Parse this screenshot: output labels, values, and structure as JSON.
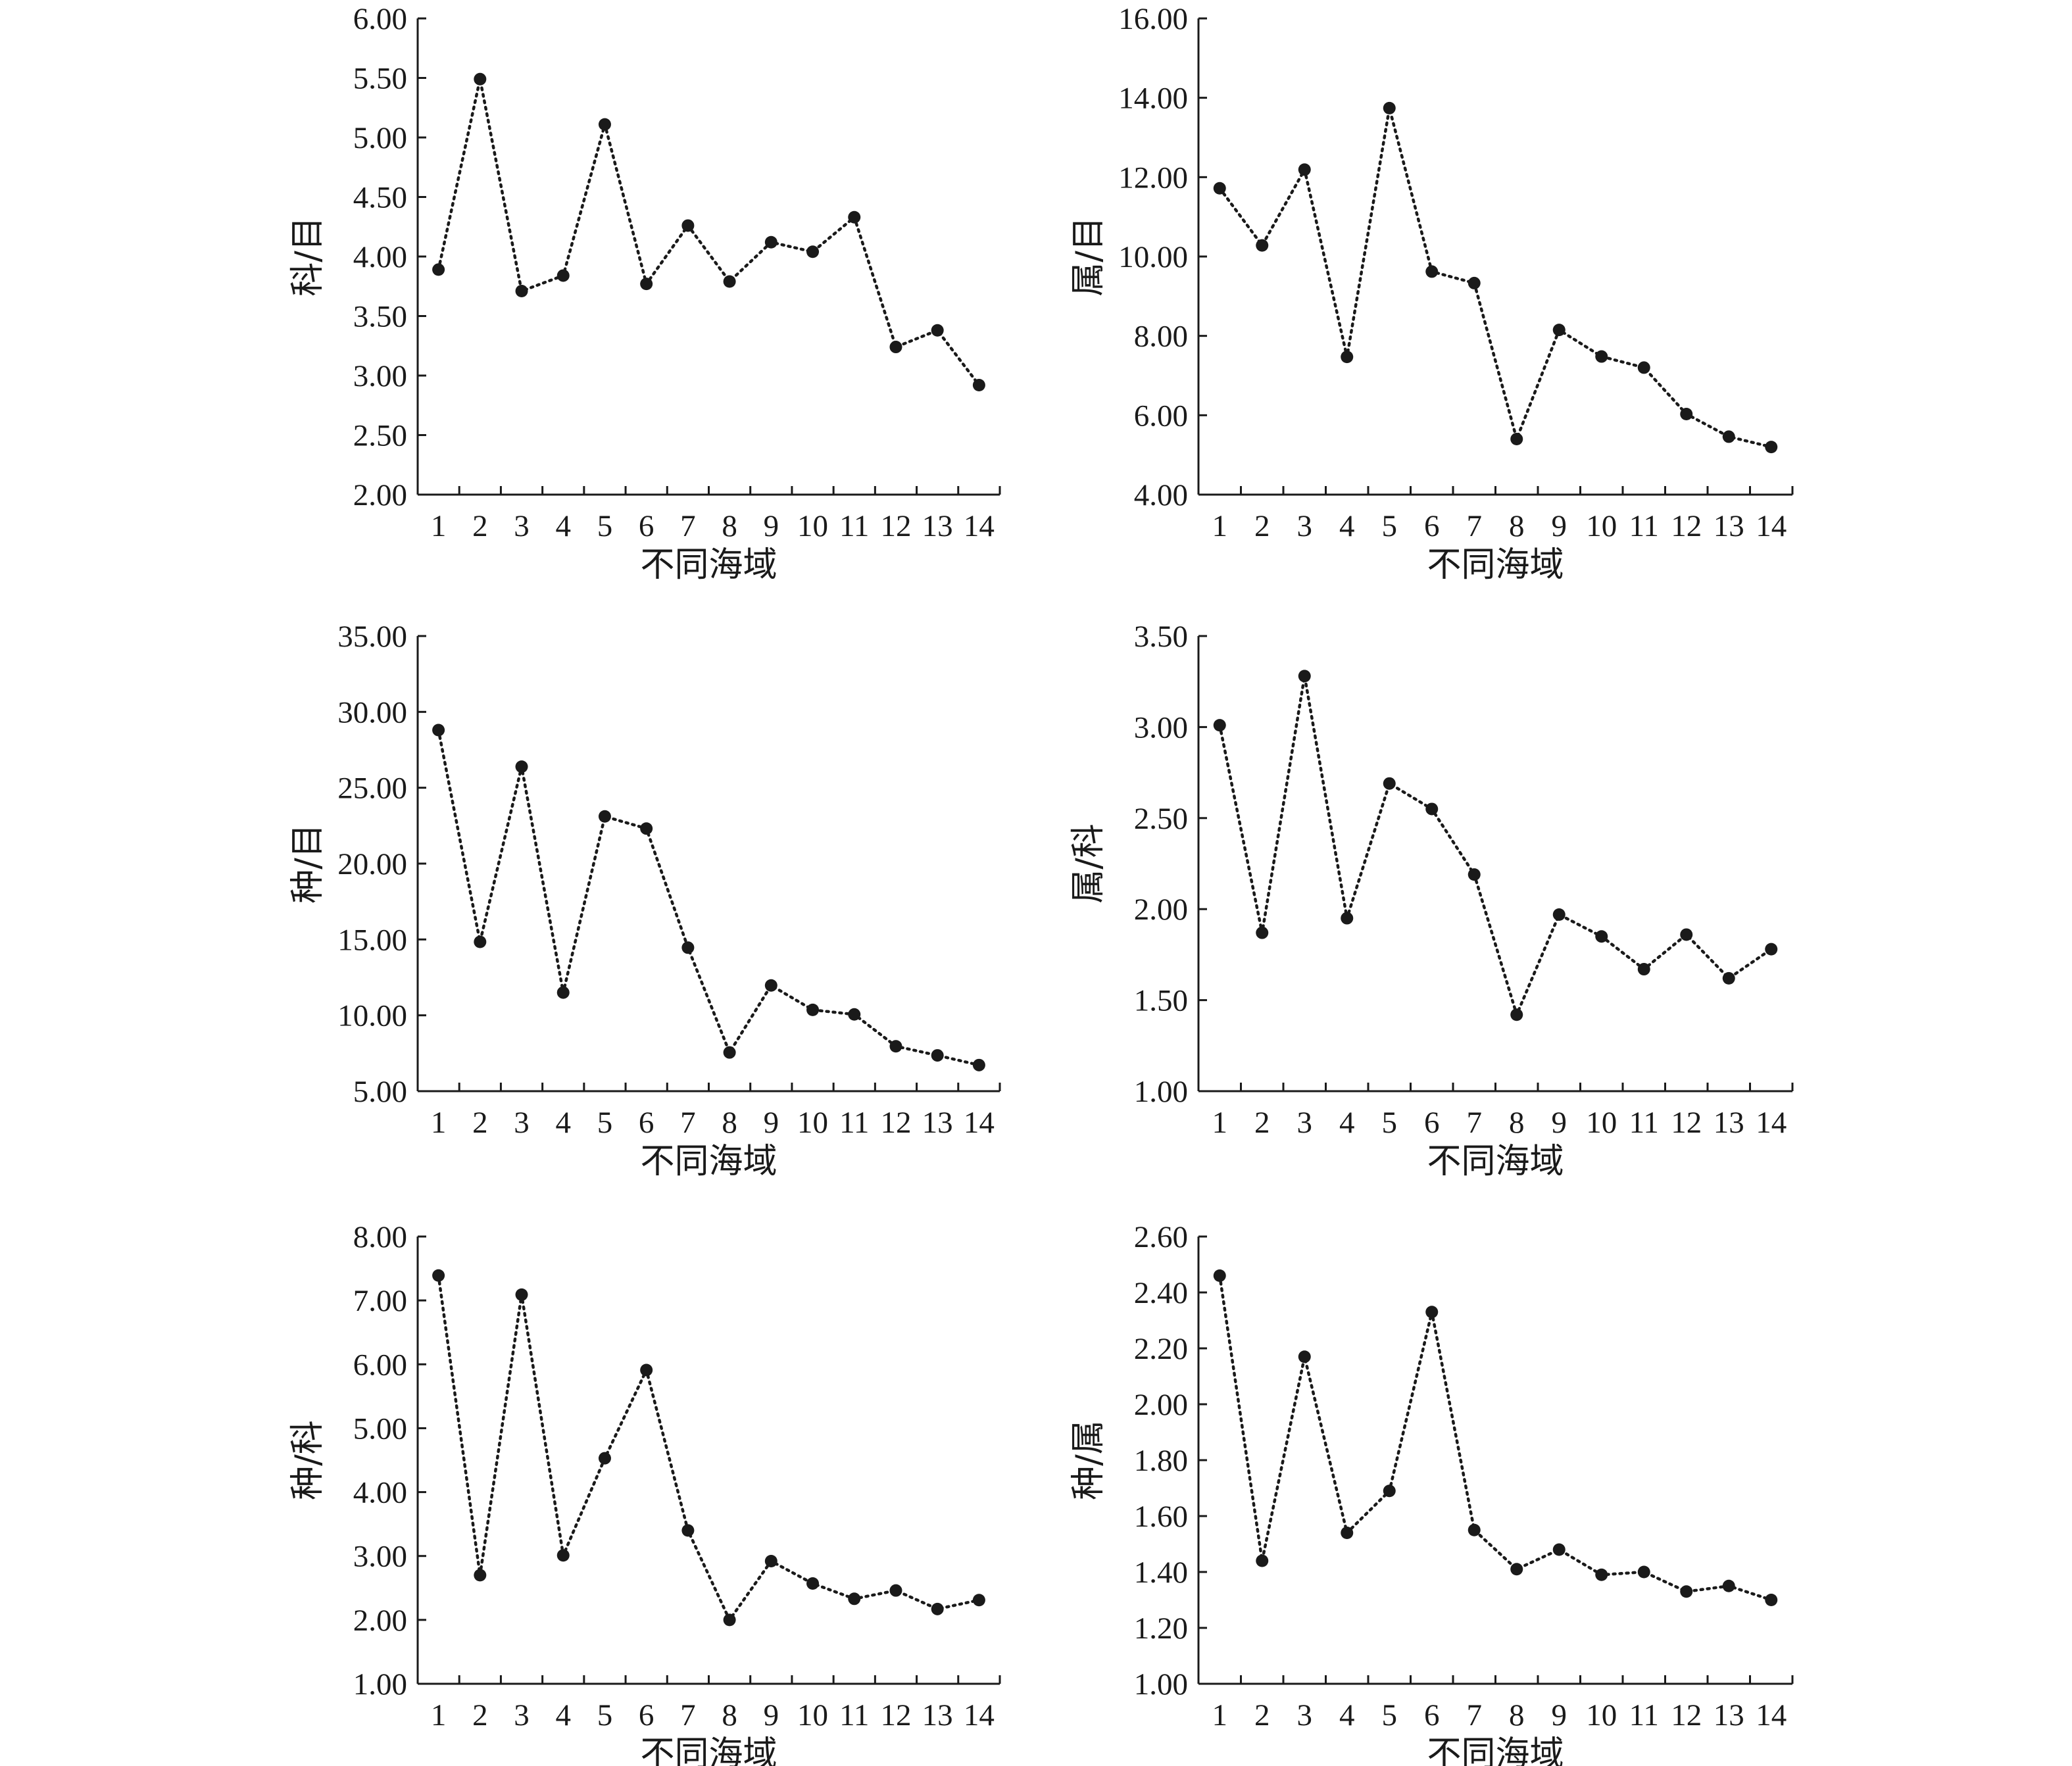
{
  "chart_data": [
    {
      "type": "line",
      "ylabel": "科/目",
      "xlabel": "不同海域",
      "ylim": [
        2,
        6
      ],
      "ystep": 0.5,
      "categories": [
        "1",
        "2",
        "3",
        "4",
        "5",
        "6",
        "7",
        "8",
        "9",
        "10",
        "11",
        "12",
        "13",
        "14"
      ],
      "values": [
        3.89,
        5.49,
        3.71,
        3.84,
        5.11,
        3.77,
        4.26,
        3.79,
        4.12,
        4.04,
        4.33,
        3.24,
        3.38,
        2.92
      ]
    },
    {
      "type": "line",
      "ylabel": "属/目",
      "xlabel": "不同海域",
      "ylim": [
        4,
        16
      ],
      "ystep": 2,
      "categories": [
        "1",
        "2",
        "3",
        "4",
        "5",
        "6",
        "7",
        "8",
        "9",
        "10",
        "11",
        "12",
        "13",
        "14"
      ],
      "values": [
        11.72,
        10.28,
        12.19,
        7.47,
        13.74,
        9.62,
        9.33,
        5.4,
        8.15,
        7.48,
        7.2,
        6.03,
        5.46,
        5.2
      ]
    },
    {
      "type": "line",
      "ylabel": "种/目",
      "xlabel": "不同海域",
      "ylim": [
        5,
        35
      ],
      "ystep": 5,
      "categories": [
        "1",
        "2",
        "3",
        "4",
        "5",
        "6",
        "7",
        "8",
        "9",
        "10",
        "11",
        "12",
        "13",
        "14"
      ],
      "values": [
        28.8,
        14.84,
        26.39,
        11.5,
        23.11,
        22.31,
        14.46,
        7.55,
        11.97,
        10.36,
        10.06,
        7.96,
        7.36,
        6.72
      ]
    },
    {
      "type": "line",
      "ylabel": "属/科",
      "xlabel": "不同海域",
      "ylim": [
        1,
        3.5
      ],
      "ystep": 0.5,
      "categories": [
        "1",
        "2",
        "3",
        "4",
        "5",
        "6",
        "7",
        "8",
        "9",
        "10",
        "11",
        "12",
        "13",
        "14"
      ],
      "values": [
        3.01,
        1.87,
        3.28,
        1.95,
        2.69,
        2.55,
        2.19,
        1.42,
        1.97,
        1.85,
        1.67,
        1.86,
        1.62,
        1.78
      ]
    },
    {
      "type": "line",
      "ylabel": "种/科",
      "xlabel": "不同海域",
      "ylim": [
        1,
        8
      ],
      "ystep": 1,
      "categories": [
        "1",
        "2",
        "3",
        "4",
        "5",
        "6",
        "7",
        "8",
        "9",
        "10",
        "11",
        "12",
        "13",
        "14"
      ],
      "values": [
        7.39,
        2.7,
        7.09,
        3.01,
        4.53,
        5.91,
        3.4,
        2.0,
        2.92,
        2.57,
        2.33,
        2.46,
        2.17,
        2.31
      ]
    },
    {
      "type": "line",
      "ylabel": "种/属",
      "xlabel": "不同海域",
      "ylim": [
        1,
        2.6
      ],
      "ystep": 0.2,
      "categories": [
        "1",
        "2",
        "3",
        "4",
        "5",
        "6",
        "7",
        "8",
        "9",
        "10",
        "11",
        "12",
        "13",
        "14"
      ],
      "values": [
        2.46,
        1.44,
        2.17,
        1.54,
        1.69,
        2.33,
        1.55,
        1.41,
        1.48,
        1.39,
        1.4,
        1.33,
        1.35,
        1.3
      ]
    }
  ]
}
